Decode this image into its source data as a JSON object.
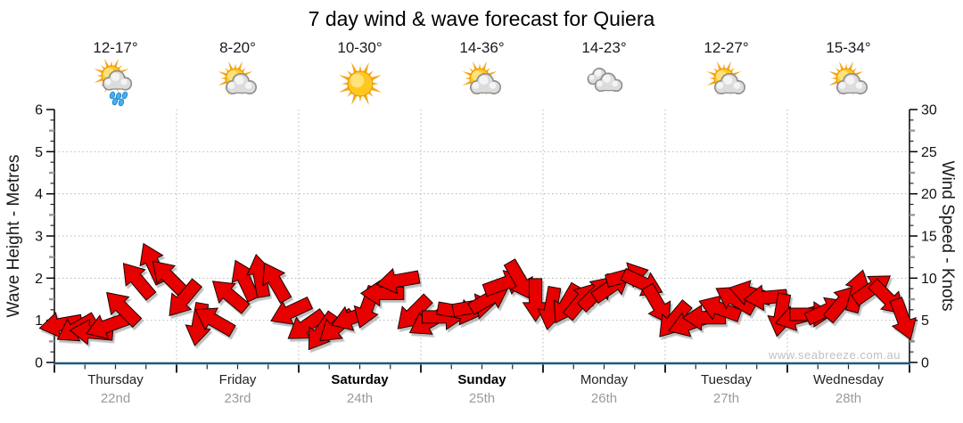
{
  "title": "7 day wind & wave forecast for Quiera",
  "watermark": "www.seabreeze.com.au",
  "axes": {
    "left_label": "Wave Height - Metres",
    "right_label": "Wind Speed - Knots",
    "left_ticks": [
      0,
      1,
      2,
      3,
      4,
      5,
      6
    ],
    "right_ticks": [
      0,
      5,
      10,
      15,
      20,
      25,
      30
    ]
  },
  "days": [
    {
      "name": "Thursday",
      "date": "22nd",
      "temp": "12-17°",
      "icon": "sun-cloud-rain",
      "weekend": false
    },
    {
      "name": "Friday",
      "date": "23rd",
      "temp": "8-20°",
      "icon": "sun-cloud",
      "weekend": false
    },
    {
      "name": "Saturday",
      "date": "24th",
      "temp": "10-30°",
      "icon": "sun",
      "weekend": true
    },
    {
      "name": "Sunday",
      "date": "25th",
      "temp": "14-36°",
      "icon": "sun-cloud",
      "weekend": true
    },
    {
      "name": "Monday",
      "date": "26th",
      "temp": "14-23°",
      "icon": "cloud",
      "weekend": false
    },
    {
      "name": "Tuesday",
      "date": "27th",
      "temp": "12-27°",
      "icon": "sun-cloud",
      "weekend": false
    },
    {
      "name": "Wednesday",
      "date": "28th",
      "temp": "15-34°",
      "icon": "sun-cloud",
      "weekend": false
    }
  ],
  "chart_data": {
    "type": "scatter",
    "marker": "wind-arrow",
    "title": "7 day wind & wave forecast for Quiera",
    "categories": [
      "Thursday 22nd",
      "Friday 23rd",
      "Saturday 24th",
      "Sunday 25th",
      "Monday 26th",
      "Tuesday 27th",
      "Wednesday 28th"
    ],
    "points_per_day": 8,
    "ylabel_left": "Wave Height - Metres",
    "ylabel_right": "Wind Speed - Knots",
    "ylim_left": [
      0,
      6
    ],
    "ylim_right": [
      0,
      30
    ],
    "grid": true,
    "unit": "knots",
    "knots": [
      4.5,
      4.0,
      3.6,
      4.3,
      6.5,
      9.8,
      11.8,
      10.2,
      7.5,
      4.5,
      5.0,
      8.0,
      9.8,
      10.3,
      9.6,
      6.0,
      4.3,
      3.6,
      4.2,
      5.3,
      6.5,
      8.2,
      9.7,
      5.8,
      4.8,
      5.4,
      6.0,
      6.6,
      7.6,
      9.4,
      9.7,
      7.4,
      6.4,
      6.9,
      7.4,
      8.3,
      9.1,
      10.3,
      9.4,
      6.8,
      5.0,
      4.6,
      5.3,
      6.4,
      7.5,
      8.2,
      7.7,
      5.6,
      5.3,
      5.7,
      6.2,
      7.1,
      8.5,
      8.8,
      7.6,
      5.1
    ],
    "dir_deg": [
      170,
      150,
      185,
      160,
      -135,
      -130,
      -115,
      -135,
      130,
      100,
      -150,
      -140,
      -115,
      -100,
      -120,
      155,
      145,
      125,
      140,
      160,
      110,
      180,
      170,
      135,
      150,
      0,
      10,
      -10,
      -30,
      -20,
      60,
      90,
      100,
      120,
      -50,
      -45,
      -35,
      -15,
      25,
      60,
      130,
      160,
      180,
      -160,
      -150,
      -165,
      175,
      100,
      165,
      0,
      -25,
      -50,
      -75,
      -35,
      45,
      70
    ]
  },
  "colors": {
    "arrow": "#e60000",
    "arrow_outline": "#1c0000",
    "axis_bottom": "#1a5a80",
    "axis_side": "#000000",
    "grid": "#b8b8b8",
    "minor_tick_gray": "#999999",
    "date_text": "#9a9a9a",
    "watermark": "#c0c0c0"
  }
}
